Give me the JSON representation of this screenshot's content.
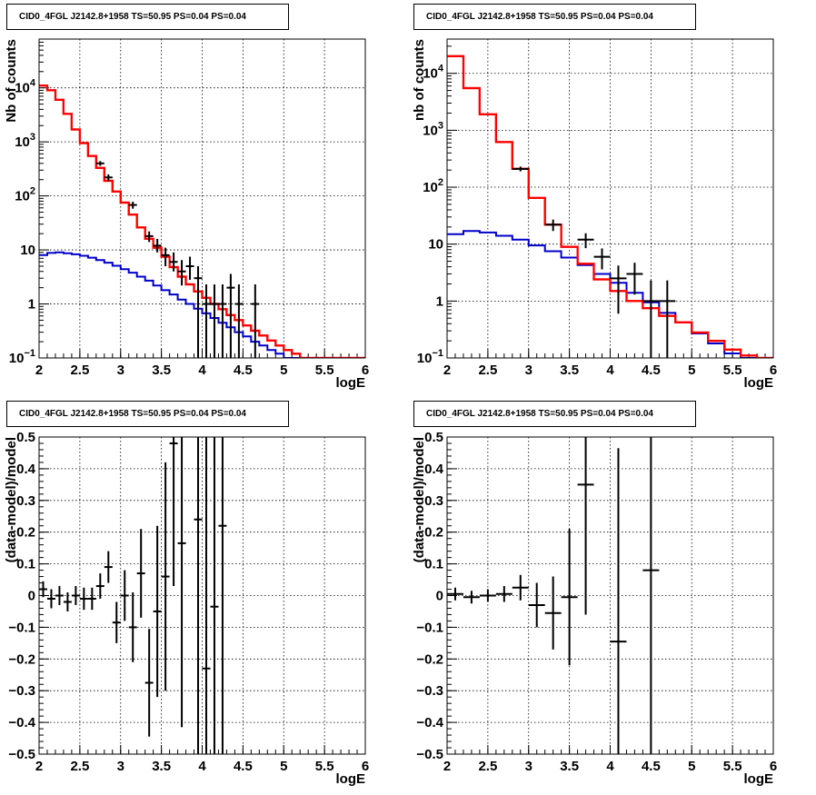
{
  "chart_data": [
    {
      "type": "line",
      "panel": "top-left",
      "title": "CID0_4FGL J2142.8+1958 TS=50.95 PS=0.04 PS=0.04",
      "xlabel": "logE",
      "ylabel": "Nb of counts",
      "xlim": [
        2,
        6
      ],
      "ylim": [
        0.1,
        80000
      ],
      "yscale": "log",
      "grid": true,
      "x_ticks": [
        "2",
        "2.5",
        "3",
        "3.5",
        "4",
        "4.5",
        "5",
        "5.5",
        "6"
      ],
      "y_ticks": [
        {
          "value": 0.1,
          "base": "10",
          "exp": "−1"
        },
        {
          "value": 1,
          "label": "1"
        },
        {
          "value": 10,
          "label": "10"
        },
        {
          "value": 100,
          "base": "10",
          "exp": "2"
        },
        {
          "value": 1000,
          "base": "10",
          "exp": "3"
        },
        {
          "value": 10000,
          "base": "10",
          "exp": "4"
        }
      ],
      "bin_edges": [
        2.0,
        2.1,
        2.2,
        2.3,
        2.4,
        2.5,
        2.6,
        2.7,
        2.8,
        2.9,
        3.0,
        3.1,
        3.2,
        3.3,
        3.4,
        3.5,
        3.6,
        3.7,
        3.8,
        3.9,
        4.0,
        4.1,
        4.2,
        4.3,
        4.4,
        4.5,
        4.6,
        4.7,
        4.8,
        4.9,
        5.0,
        5.1,
        5.2,
        5.3,
        5.4,
        5.5,
        5.6,
        5.7,
        5.8,
        5.9,
        6.0
      ],
      "series": [
        {
          "role": "total-model",
          "color": "#ff0000",
          "values": [
            11000,
            9000,
            6000,
            3300,
            1700,
            950,
            550,
            330,
            190,
            120,
            75,
            45,
            26,
            16,
            11,
            7.5,
            4.8,
            3.2,
            2.3,
            1.7,
            1.3,
            1.0,
            0.8,
            0.62,
            0.5,
            0.4,
            0.32,
            0.26,
            0.21,
            0.17,
            0.14,
            0.12,
            0.1,
            0.1,
            0.1,
            0.1,
            0.1,
            0.1,
            0.1,
            0.1
          ]
        },
        {
          "role": "source-model",
          "color": "#ff0000",
          "values": [
            11000,
            9000,
            6000,
            3300,
            1700,
            950,
            550,
            330,
            190,
            120,
            75,
            45,
            26,
            16,
            11,
            7.5,
            4.8,
            3.2,
            2.3,
            1.7,
            1.3,
            1.0,
            0.8,
            0.62,
            0.5,
            0.4,
            0.32,
            0.26,
            0.21,
            0.17,
            0.14,
            0.12,
            0.1,
            0.1,
            0.1,
            0.1,
            0.1,
            0.1,
            0.1,
            0.1
          ]
        },
        {
          "role": "background-model",
          "color": "#0000cc",
          "values": [
            8,
            8.8,
            9,
            8.7,
            8.3,
            7.8,
            7.2,
            6.5,
            5.8,
            5.1,
            4.4,
            3.8,
            3.2,
            2.7,
            2.2,
            1.8,
            1.5,
            1.2,
            1.0,
            0.82,
            0.67,
            0.55,
            0.45,
            0.37,
            0.3,
            0.25,
            0.2,
            0.17,
            0.14,
            0.12,
            0.1,
            0.1,
            0.1,
            0.1,
            0.1,
            0.1,
            0.1,
            0.1,
            0.1,
            0.1
          ]
        }
      ],
      "points": [
        {
          "x": 2.75,
          "y": 400,
          "lo": 360,
          "hi": 440
        },
        {
          "x": 2.85,
          "y": 220,
          "lo": 190,
          "hi": 250
        },
        {
          "x": 3.15,
          "y": 68,
          "lo": 58,
          "hi": 78
        },
        {
          "x": 3.35,
          "y": 18,
          "lo": 14,
          "hi": 22
        },
        {
          "x": 3.45,
          "y": 12,
          "lo": 9,
          "hi": 16
        },
        {
          "x": 3.55,
          "y": 8,
          "lo": 5,
          "hi": 11
        },
        {
          "x": 3.65,
          "y": 6,
          "lo": 4,
          "hi": 9
        },
        {
          "x": 3.75,
          "y": 4,
          "lo": 2.2,
          "hi": 6.5
        },
        {
          "x": 3.85,
          "y": 5,
          "lo": 2.8,
          "hi": 7.5
        },
        {
          "x": 3.95,
          "y": 3,
          "lo": 0.1,
          "hi": 5
        },
        {
          "x": 4.05,
          "y": 1,
          "lo": 0.1,
          "hi": 2.3
        },
        {
          "x": 4.15,
          "y": 1,
          "lo": 0.1,
          "hi": 2.3
        },
        {
          "x": 4.25,
          "y": 1,
          "lo": 0.1,
          "hi": 2.3
        },
        {
          "x": 4.35,
          "y": 2,
          "lo": 0.1,
          "hi": 3.6
        },
        {
          "x": 4.45,
          "y": 1,
          "lo": 0.1,
          "hi": 2.3
        },
        {
          "x": 4.65,
          "y": 1,
          "lo": 0.1,
          "hi": 2.3
        }
      ]
    },
    {
      "type": "line",
      "panel": "top-right",
      "title": "CID0_4FGL J2142.8+1958 TS=50.95 PS=0.04 PS=0.04",
      "xlabel": "logE",
      "ylabel": "nb of counts",
      "xlim": [
        2,
        6
      ],
      "ylim": [
        0.1,
        40000
      ],
      "yscale": "log",
      "grid": true,
      "x_ticks": [
        "2",
        "2.5",
        "3",
        "3.5",
        "4",
        "4.5",
        "5",
        "5.5",
        "6"
      ],
      "y_ticks": [
        {
          "value": 0.1,
          "base": "10",
          "exp": "−1"
        },
        {
          "value": 1,
          "label": "1"
        },
        {
          "value": 10,
          "label": "10"
        },
        {
          "value": 100,
          "base": "10",
          "exp": "2"
        },
        {
          "value": 1000,
          "base": "10",
          "exp": "3"
        },
        {
          "value": 10000,
          "base": "10",
          "exp": "4"
        }
      ],
      "bin_edges": [
        2.0,
        2.2,
        2.4,
        2.6,
        2.8,
        3.0,
        3.2,
        3.4,
        3.6,
        3.8,
        4.0,
        4.2,
        4.4,
        4.6,
        4.8,
        5.0,
        5.2,
        5.4,
        5.6,
        5.8,
        6.0
      ],
      "series": [
        {
          "role": "total-model",
          "color": "#ff0000",
          "values": [
            20000,
            5500,
            1900,
            620,
            210,
            65,
            22,
            9,
            4.5,
            2.4,
            1.5,
            1.0,
            0.75,
            0.55,
            0.42,
            0.28,
            0.2,
            0.14,
            0.11,
            0.1
          ]
        },
        {
          "role": "source-model",
          "color": "#ff0000",
          "values": [
            20000,
            5500,
            1900,
            620,
            210,
            65,
            22,
            9,
            4.5,
            2.4,
            1.5,
            1.0,
            0.75,
            0.55,
            0.42,
            0.28,
            0.2,
            0.14,
            0.11,
            0.1
          ]
        },
        {
          "role": "background-model",
          "color": "#0000cc",
          "values": [
            15,
            17,
            16,
            14,
            12,
            9.5,
            7.5,
            5.8,
            4.3,
            3.0,
            2.1,
            1.4,
            0.95,
            0.62,
            0.42,
            0.27,
            0.18,
            0.12,
            0.1,
            0.1
          ]
        }
      ],
      "points": [
        {
          "x": 2.9,
          "y": 210,
          "lo": 190,
          "hi": 230
        },
        {
          "x": 3.3,
          "y": 22,
          "lo": 17,
          "hi": 27
        },
        {
          "x": 3.7,
          "y": 12,
          "lo": 8.5,
          "hi": 15.5
        },
        {
          "x": 3.9,
          "y": 6,
          "lo": 3.6,
          "hi": 8.4
        },
        {
          "x": 4.1,
          "y": 2.5,
          "lo": 0.6,
          "hi": 4.2
        },
        {
          "x": 4.3,
          "y": 3,
          "lo": 1.3,
          "hi": 4.7
        },
        {
          "x": 4.5,
          "y": 1,
          "lo": 0.1,
          "hi": 2.3
        },
        {
          "x": 4.7,
          "y": 1,
          "lo": 0.1,
          "hi": 2.3
        }
      ]
    },
    {
      "type": "scatter",
      "panel": "bottom-left",
      "title": "CID0_4FGL J2142.8+1958 TS=50.95 PS=0.04 PS=0.04",
      "xlabel": "logE",
      "ylabel": "(data-model)/model",
      "xlim": [
        2,
        6
      ],
      "ylim": [
        -0.5,
        0.5
      ],
      "yscale": "linear",
      "grid": true,
      "x_ticks": [
        "2",
        "2.5",
        "3",
        "3.5",
        "4",
        "4.5",
        "5",
        "5.5",
        "6"
      ],
      "y_ticks": [
        "−0.5",
        "−0.4",
        "−0.3",
        "−0.2",
        "−0.1",
        "0",
        "0.1",
        "0.2",
        "0.3",
        "0.4",
        "0.5"
      ],
      "points": [
        {
          "x": 2.05,
          "y": 0.02,
          "err": 0.025,
          "hw": 0.05
        },
        {
          "x": 2.15,
          "y": -0.01,
          "err": 0.03,
          "hw": 0.05
        },
        {
          "x": 2.25,
          "y": 0.0,
          "err": 0.03,
          "hw": 0.05
        },
        {
          "x": 2.35,
          "y": -0.02,
          "err": 0.03,
          "hw": 0.05
        },
        {
          "x": 2.45,
          "y": 0.0,
          "err": 0.03,
          "hw": 0.05
        },
        {
          "x": 2.55,
          "y": -0.01,
          "err": 0.035,
          "hw": 0.05
        },
        {
          "x": 2.65,
          "y": -0.01,
          "err": 0.035,
          "hw": 0.05
        },
        {
          "x": 2.75,
          "y": 0.03,
          "err": 0.04,
          "hw": 0.05
        },
        {
          "x": 2.85,
          "y": 0.09,
          "err": 0.05,
          "hw": 0.05
        },
        {
          "x": 2.95,
          "y": -0.085,
          "err": 0.065,
          "hw": 0.05
        },
        {
          "x": 3.05,
          "y": 0.0,
          "err": 0.08,
          "hw": 0.05
        },
        {
          "x": 3.15,
          "y": -0.1,
          "err": 0.11,
          "hw": 0.05
        },
        {
          "x": 3.25,
          "y": 0.07,
          "err": 0.14,
          "hw": 0.05
        },
        {
          "x": 3.35,
          "y": -0.275,
          "err": 0.17,
          "hw": 0.05
        },
        {
          "x": 3.45,
          "y": -0.05,
          "err": 0.27,
          "hw": 0.05
        },
        {
          "x": 3.55,
          "y": 0.06,
          "err": 0.36,
          "hw": 0.05
        },
        {
          "x": 3.65,
          "y": 0.48,
          "err": 0.45,
          "hw": 0.05
        },
        {
          "x": 3.75,
          "y": 0.165,
          "err": 0.58,
          "hw": 0.05
        },
        {
          "x": 3.95,
          "y": 0.24,
          "err": 1.0,
          "hw": 0.05
        },
        {
          "x": 4.05,
          "y": -0.23,
          "err": 1.0,
          "hw": 0.05
        },
        {
          "x": 4.15,
          "y": -0.035,
          "err": 1.0,
          "hw": 0.05
        },
        {
          "x": 4.25,
          "y": 0.22,
          "err": 1.0,
          "hw": 0.05
        }
      ]
    },
    {
      "type": "scatter",
      "panel": "bottom-right",
      "title": "CID0_4FGL J2142.8+1958 TS=50.95 PS=0.04 PS=0.04",
      "xlabel": "logE",
      "ylabel": "(data-model)/model",
      "xlim": [
        2,
        6
      ],
      "ylim": [
        -0.5,
        0.5
      ],
      "yscale": "linear",
      "grid": true,
      "x_ticks": [
        "2",
        "2.5",
        "3",
        "3.5",
        "4",
        "4.5",
        "5",
        "5.5",
        "6"
      ],
      "y_ticks": [
        "−0.5",
        "−0.4",
        "−0.3",
        "−0.2",
        "−0.1",
        "0",
        "0.1",
        "0.2",
        "0.3",
        "0.4",
        "0.5"
      ],
      "points": [
        {
          "x": 2.1,
          "y": 0.005,
          "err": 0.02,
          "hw": 0.1
        },
        {
          "x": 2.3,
          "y": -0.005,
          "err": 0.02,
          "hw": 0.1
        },
        {
          "x": 2.5,
          "y": 0.0,
          "err": 0.02,
          "hw": 0.1
        },
        {
          "x": 2.7,
          "y": 0.005,
          "err": 0.025,
          "hw": 0.1
        },
        {
          "x": 2.9,
          "y": 0.025,
          "err": 0.04,
          "hw": 0.1
        },
        {
          "x": 3.1,
          "y": -0.03,
          "err": 0.07,
          "hw": 0.1
        },
        {
          "x": 3.3,
          "y": -0.055,
          "err": 0.115,
          "hw": 0.1
        },
        {
          "x": 3.5,
          "y": -0.005,
          "err": 0.215,
          "hw": 0.1
        },
        {
          "x": 3.7,
          "y": 0.35,
          "err": 0.41,
          "hw": 0.1
        },
        {
          "x": 4.1,
          "y": -0.145,
          "err": 0.61,
          "hw": 0.1
        },
        {
          "x": 4.5,
          "y": 0.08,
          "err": 1.0,
          "hw": 0.1
        }
      ]
    }
  ]
}
